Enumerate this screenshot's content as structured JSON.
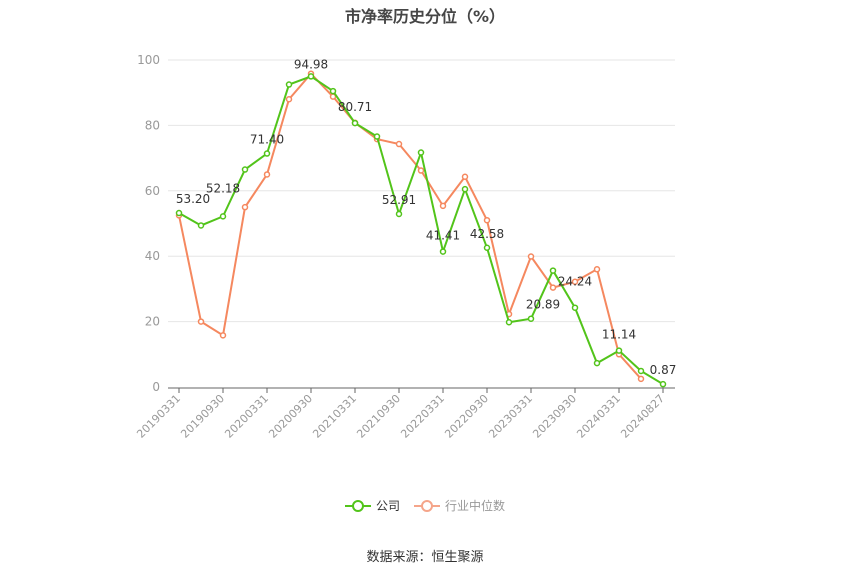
{
  "title": "市净率历史分位（%）",
  "source": "数据来源：恒生聚源",
  "colors": {
    "company": "#52c41a",
    "industry": "#f5885f",
    "grid": "#e6e6e6",
    "axis": "#666666",
    "tick_label": "#999999"
  },
  "legend": [
    {
      "name": "公司",
      "color": "#52c41a"
    },
    {
      "name": "行业中位数",
      "color": "#f5a58a"
    }
  ],
  "chart_data": {
    "type": "line",
    "title": "市净率历史分位（%）",
    "xlabel": "",
    "ylabel": "",
    "ylim": [
      0,
      100
    ],
    "yticks": [
      0,
      20,
      40,
      60,
      80,
      100
    ],
    "grid": true,
    "legend_position": "bottom",
    "x_tick_labels": [
      "20190331",
      "20190930",
      "20200331",
      "20200930",
      "20210331",
      "20210930",
      "20220331",
      "20220930",
      "20230331",
      "20230930",
      "20240331",
      "20240827"
    ],
    "x": [
      "20190331",
      "20190630",
      "20190930",
      "20191231",
      "20200331",
      "20200630",
      "20200930",
      "20201231",
      "20210331",
      "20210630",
      "20210930",
      "20211231",
      "20220331",
      "20220630",
      "20220930",
      "20221231",
      "20230331",
      "20230630",
      "20230930",
      "20231231",
      "20240331",
      "20240630",
      "20240827"
    ],
    "series": [
      {
        "name": "公司",
        "values": [
          53.2,
          49.4,
          52.18,
          66.5,
          71.4,
          92.5,
          94.98,
          90.5,
          80.71,
          76.6,
          52.91,
          71.7,
          41.41,
          60.5,
          42.58,
          19.8,
          20.89,
          35.6,
          24.24,
          7.3,
          11.14,
          4.9,
          0.87
        ],
        "labels": {
          "0": "53.20",
          "2": "52.18",
          "4": "71.40",
          "6": "94.98",
          "8": "80.71",
          "10": "52.91",
          "12": "41.41",
          "14": "42.58",
          "16": "20.89",
          "18": "24.24",
          "20": "11.14",
          "22": "0.87"
        }
      },
      {
        "name": "行业中位数",
        "values": [
          52.5,
          20.0,
          15.8,
          55.0,
          65.0,
          88.0,
          95.8,
          88.8,
          80.8,
          75.8,
          74.3,
          66.2,
          55.4,
          64.3,
          51.0,
          22.3,
          39.9,
          30.4,
          32.2,
          36.0,
          10.0,
          2.5,
          null
        ]
      }
    ]
  }
}
